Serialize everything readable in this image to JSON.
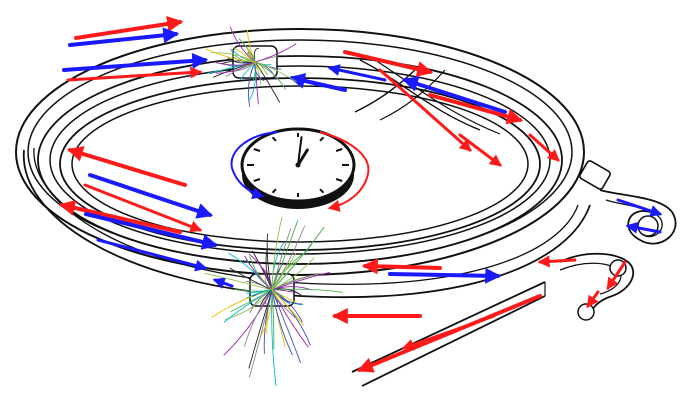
{
  "colors": {
    "background": "#ffffff",
    "outline": "#111111",
    "tube_fill": "#ffffff",
    "beam_clockwise": "#ff1a1a",
    "beam_counterclockwise": "#1a1aff",
    "clock_face": "#ffffff",
    "clock_rim": "#111111",
    "clock_hands": "#111111",
    "particle_tracks": [
      "#222222",
      "#4caf50",
      "#00bcd4",
      "#9c27b0",
      "#e6c200",
      "#8bc34a",
      "#3f51b5",
      "#888888"
    ]
  },
  "components": {
    "storage_rings": {
      "count": 3,
      "shape": "ellipse"
    },
    "collision_points": {
      "count": 2,
      "icon": "particle-shower-icon"
    },
    "clock": {
      "icon": "clock-icon",
      "hour_angle_deg": 25,
      "minute_angle_deg": 5,
      "tick_count": 12
    },
    "rotation_indicators": [
      {
        "direction": "counterclockwise",
        "color": "beam_counterclockwise"
      },
      {
        "direction": "clockwise",
        "color": "beam_clockwise"
      }
    ],
    "injector_loop": {
      "icon": "injector-loop-icon"
    },
    "transfer_line": {
      "icon": "transfer-line-icon"
    }
  }
}
